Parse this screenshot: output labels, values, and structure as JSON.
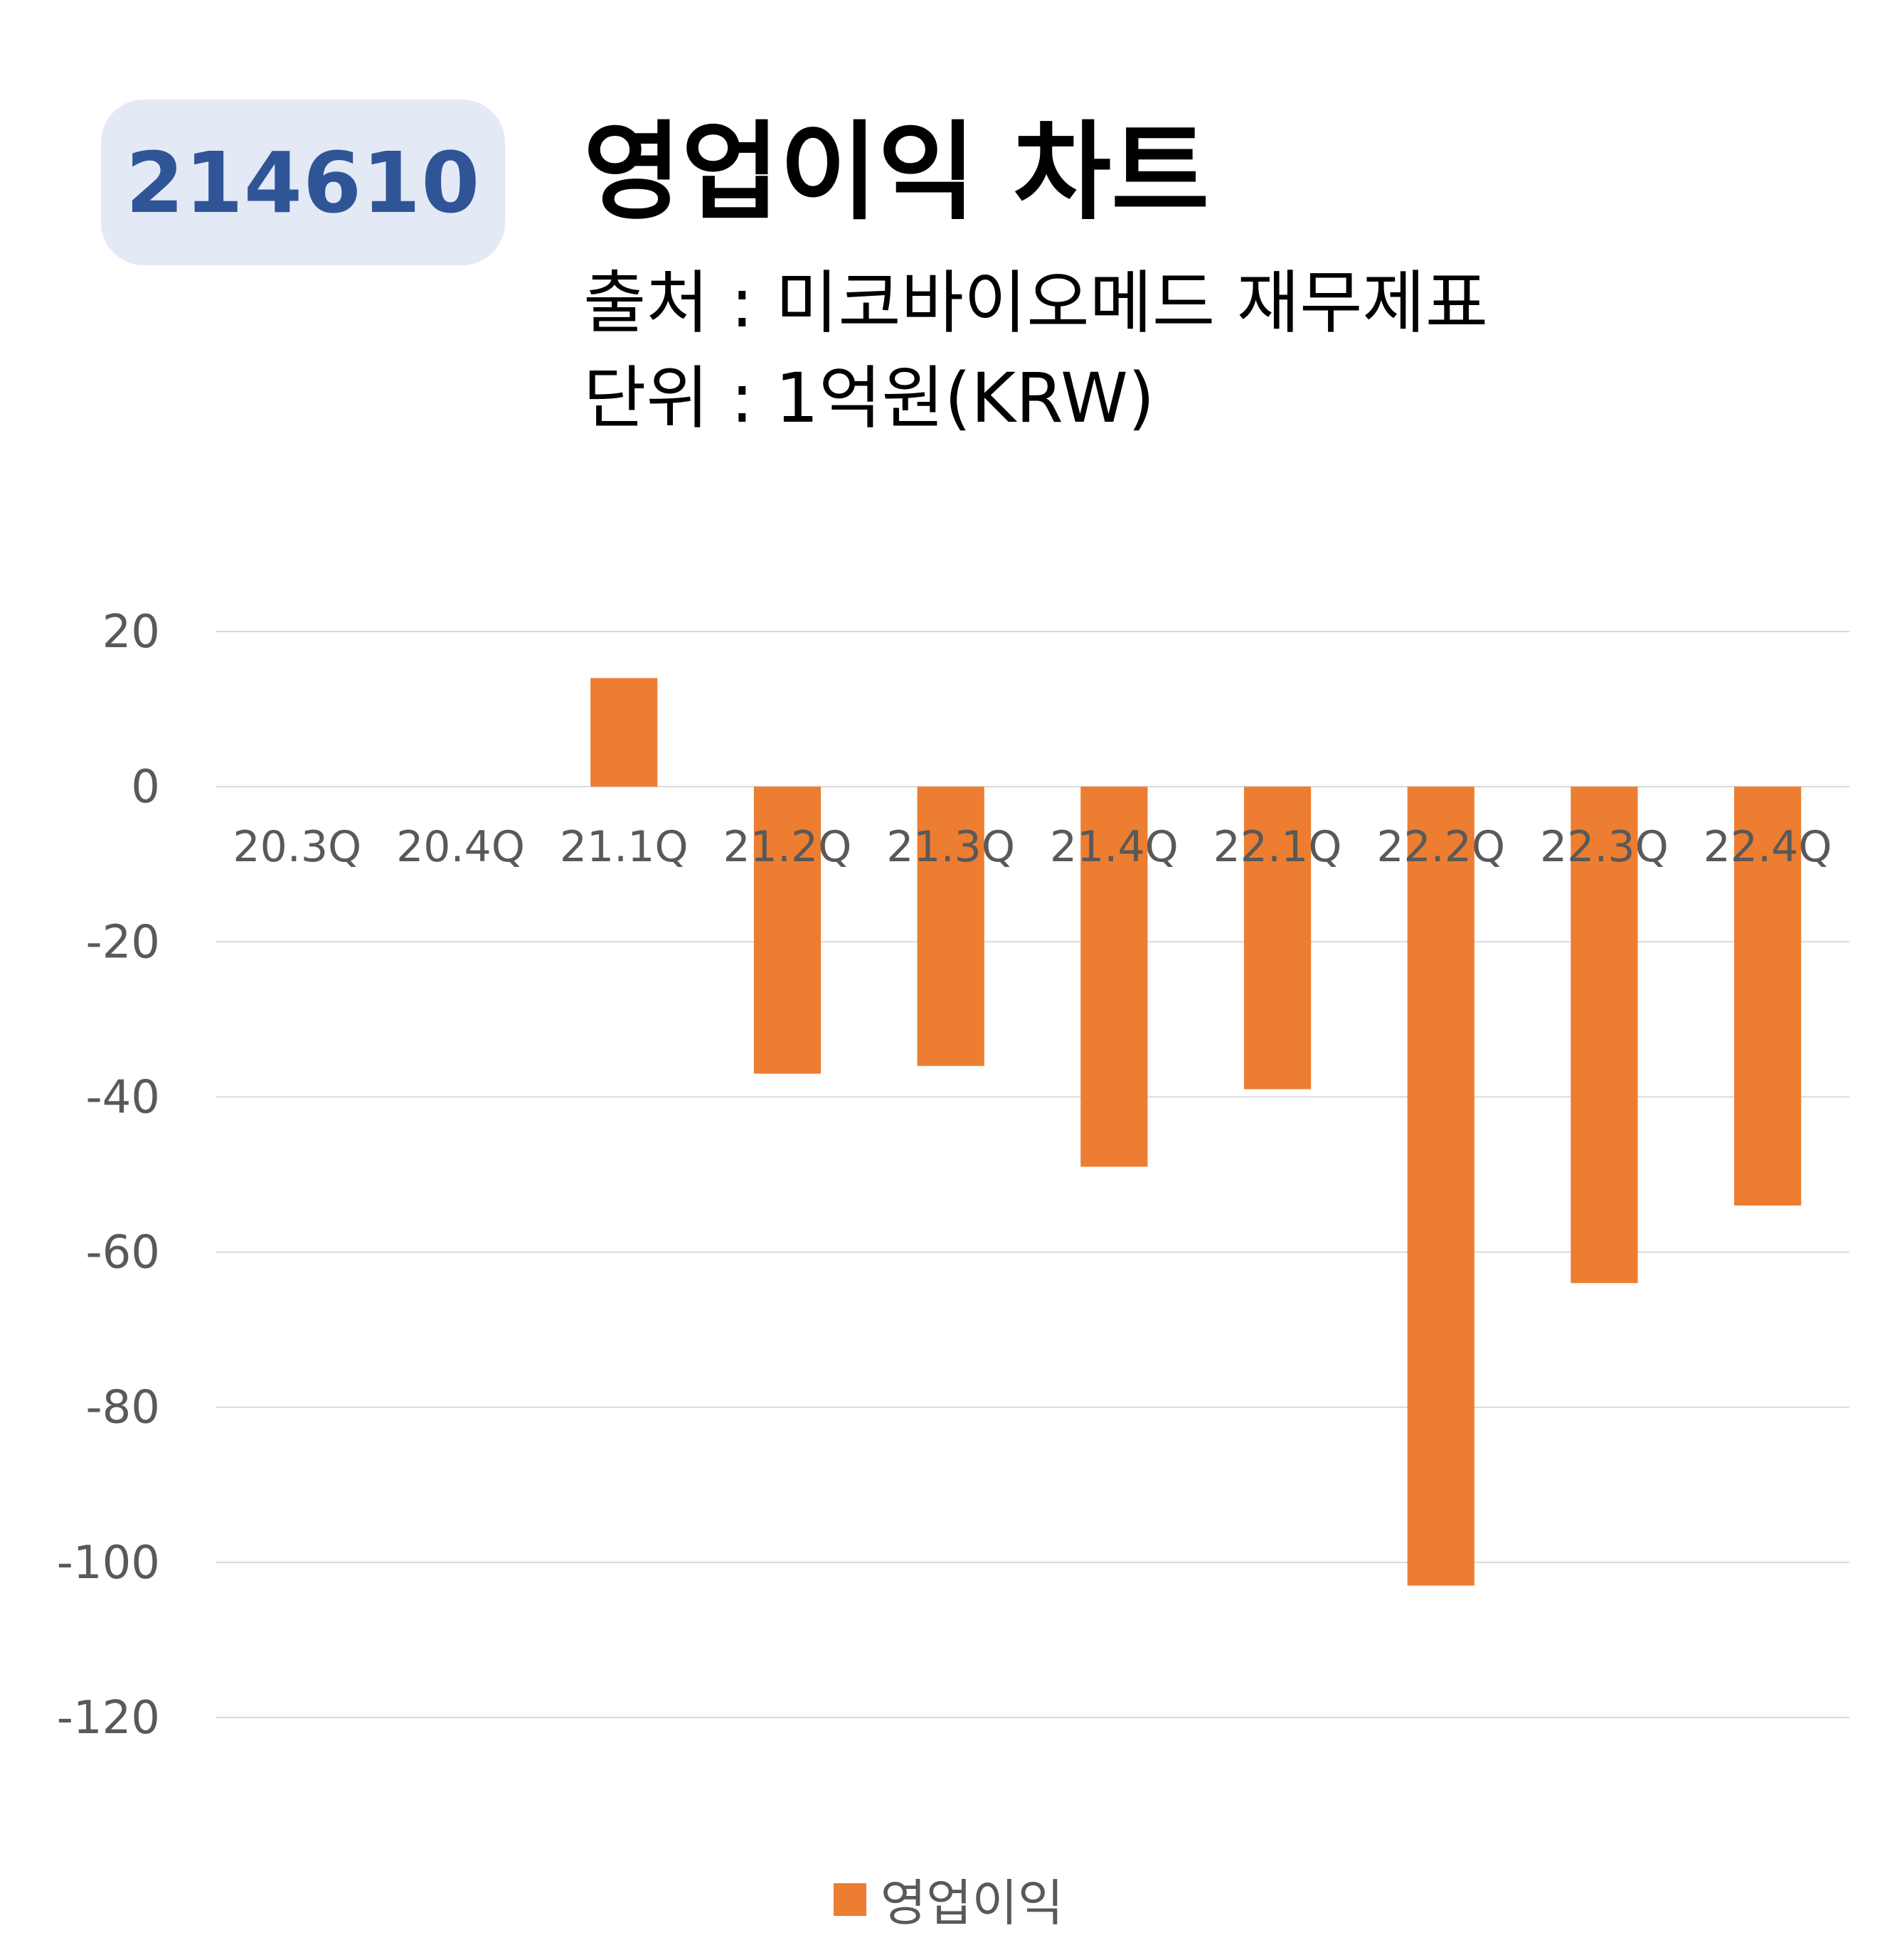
{
  "header": {
    "ticker": "214610",
    "title": "영업이익 차트",
    "source_label": "출처",
    "source_value": "미코바이오메드 재무제표",
    "unit_label": "단위",
    "unit_value": "1억원(KRW)",
    "separator": ":"
  },
  "colors": {
    "bar": "#ed7d31",
    "badge_bg": "#e3e9f5",
    "badge_text": "#2f5597",
    "grid": "#d9d9d9",
    "tick_text": "#595959"
  },
  "chart_data": {
    "type": "bar",
    "categories": [
      "20.3Q",
      "20.4Q",
      "21.1Q",
      "21.2Q",
      "21.3Q",
      "21.4Q",
      "22.1Q",
      "22.2Q",
      "22.3Q",
      "22.4Q"
    ],
    "series": [
      {
        "name": "영업이익",
        "values": [
          null,
          null,
          14,
          -37,
          -36,
          -49,
          -39,
          -103,
          -64,
          -54
        ]
      }
    ],
    "ylim": [
      -120,
      20
    ],
    "yticks": [
      20,
      0,
      -20,
      -40,
      -60,
      -80,
      -100,
      -120
    ],
    "ytick_labels": [
      "20",
      "0",
      "-20",
      "-40",
      "-60",
      "-80",
      "-100",
      "-120"
    ],
    "grid": true,
    "legend": "bottom-center"
  }
}
